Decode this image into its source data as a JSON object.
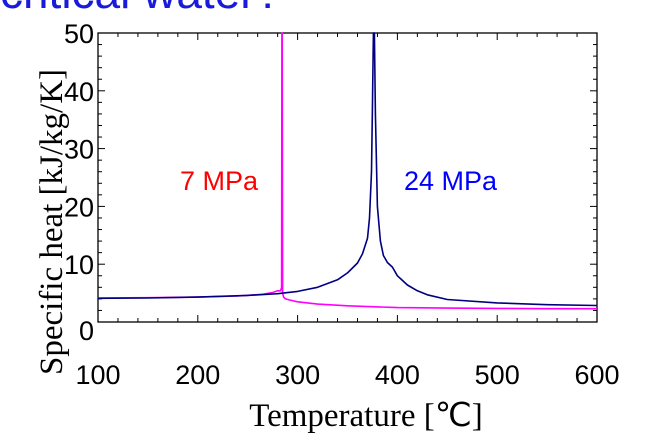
{
  "header": {
    "banner_text": "critical water?"
  },
  "chart_data": {
    "type": "line",
    "title": "",
    "xlabel": "Temperature [℃]",
    "ylabel": "Specific heat [kJ/kg/K]",
    "xlim": [
      100,
      600
    ],
    "ylim": [
      0,
      50
    ],
    "xticks": [
      "100",
      "200",
      "300",
      "400",
      "500",
      "600"
    ],
    "yticks": [
      "0",
      "10",
      "20",
      "30",
      "40",
      "50"
    ],
    "grid": false,
    "series": [
      {
        "name": "7 MPa",
        "color": "#ff00ff",
        "label_color": "#ff0000",
        "x": [
          100,
          150,
          200,
          240,
          265,
          275,
          280,
          283,
          284,
          284.3,
          284.6,
          285,
          286,
          288,
          292,
          300,
          320,
          350,
          400,
          450,
          500,
          550,
          600
        ],
        "y": [
          4.15,
          4.2,
          4.3,
          4.5,
          4.8,
          5.1,
          5.4,
          5.4,
          6.0,
          50,
          50,
          5.0,
          4.3,
          4.0,
          3.8,
          3.5,
          3.1,
          2.8,
          2.5,
          2.4,
          2.35,
          2.3,
          2.3
        ]
      },
      {
        "name": "24 MPa",
        "color": "#000080",
        "label_color": "#0000ff",
        "x": [
          100,
          150,
          200,
          250,
          280,
          300,
          320,
          340,
          350,
          360,
          365,
          370,
          372,
          374,
          375,
          376,
          377,
          378,
          380,
          383,
          386,
          390,
          395,
          400,
          405,
          410,
          420,
          430,
          450,
          500,
          550,
          600
        ],
        "y": [
          4.1,
          4.15,
          4.3,
          4.6,
          4.9,
          5.3,
          6.0,
          7.3,
          8.5,
          10.2,
          11.8,
          14.5,
          18.0,
          26.0,
          38.0,
          50,
          50,
          36.0,
          20.0,
          14.0,
          11.5,
          10.3,
          9.5,
          8.0,
          7.2,
          6.4,
          5.4,
          4.7,
          3.9,
          3.3,
          3.0,
          2.85
        ]
      }
    ]
  }
}
